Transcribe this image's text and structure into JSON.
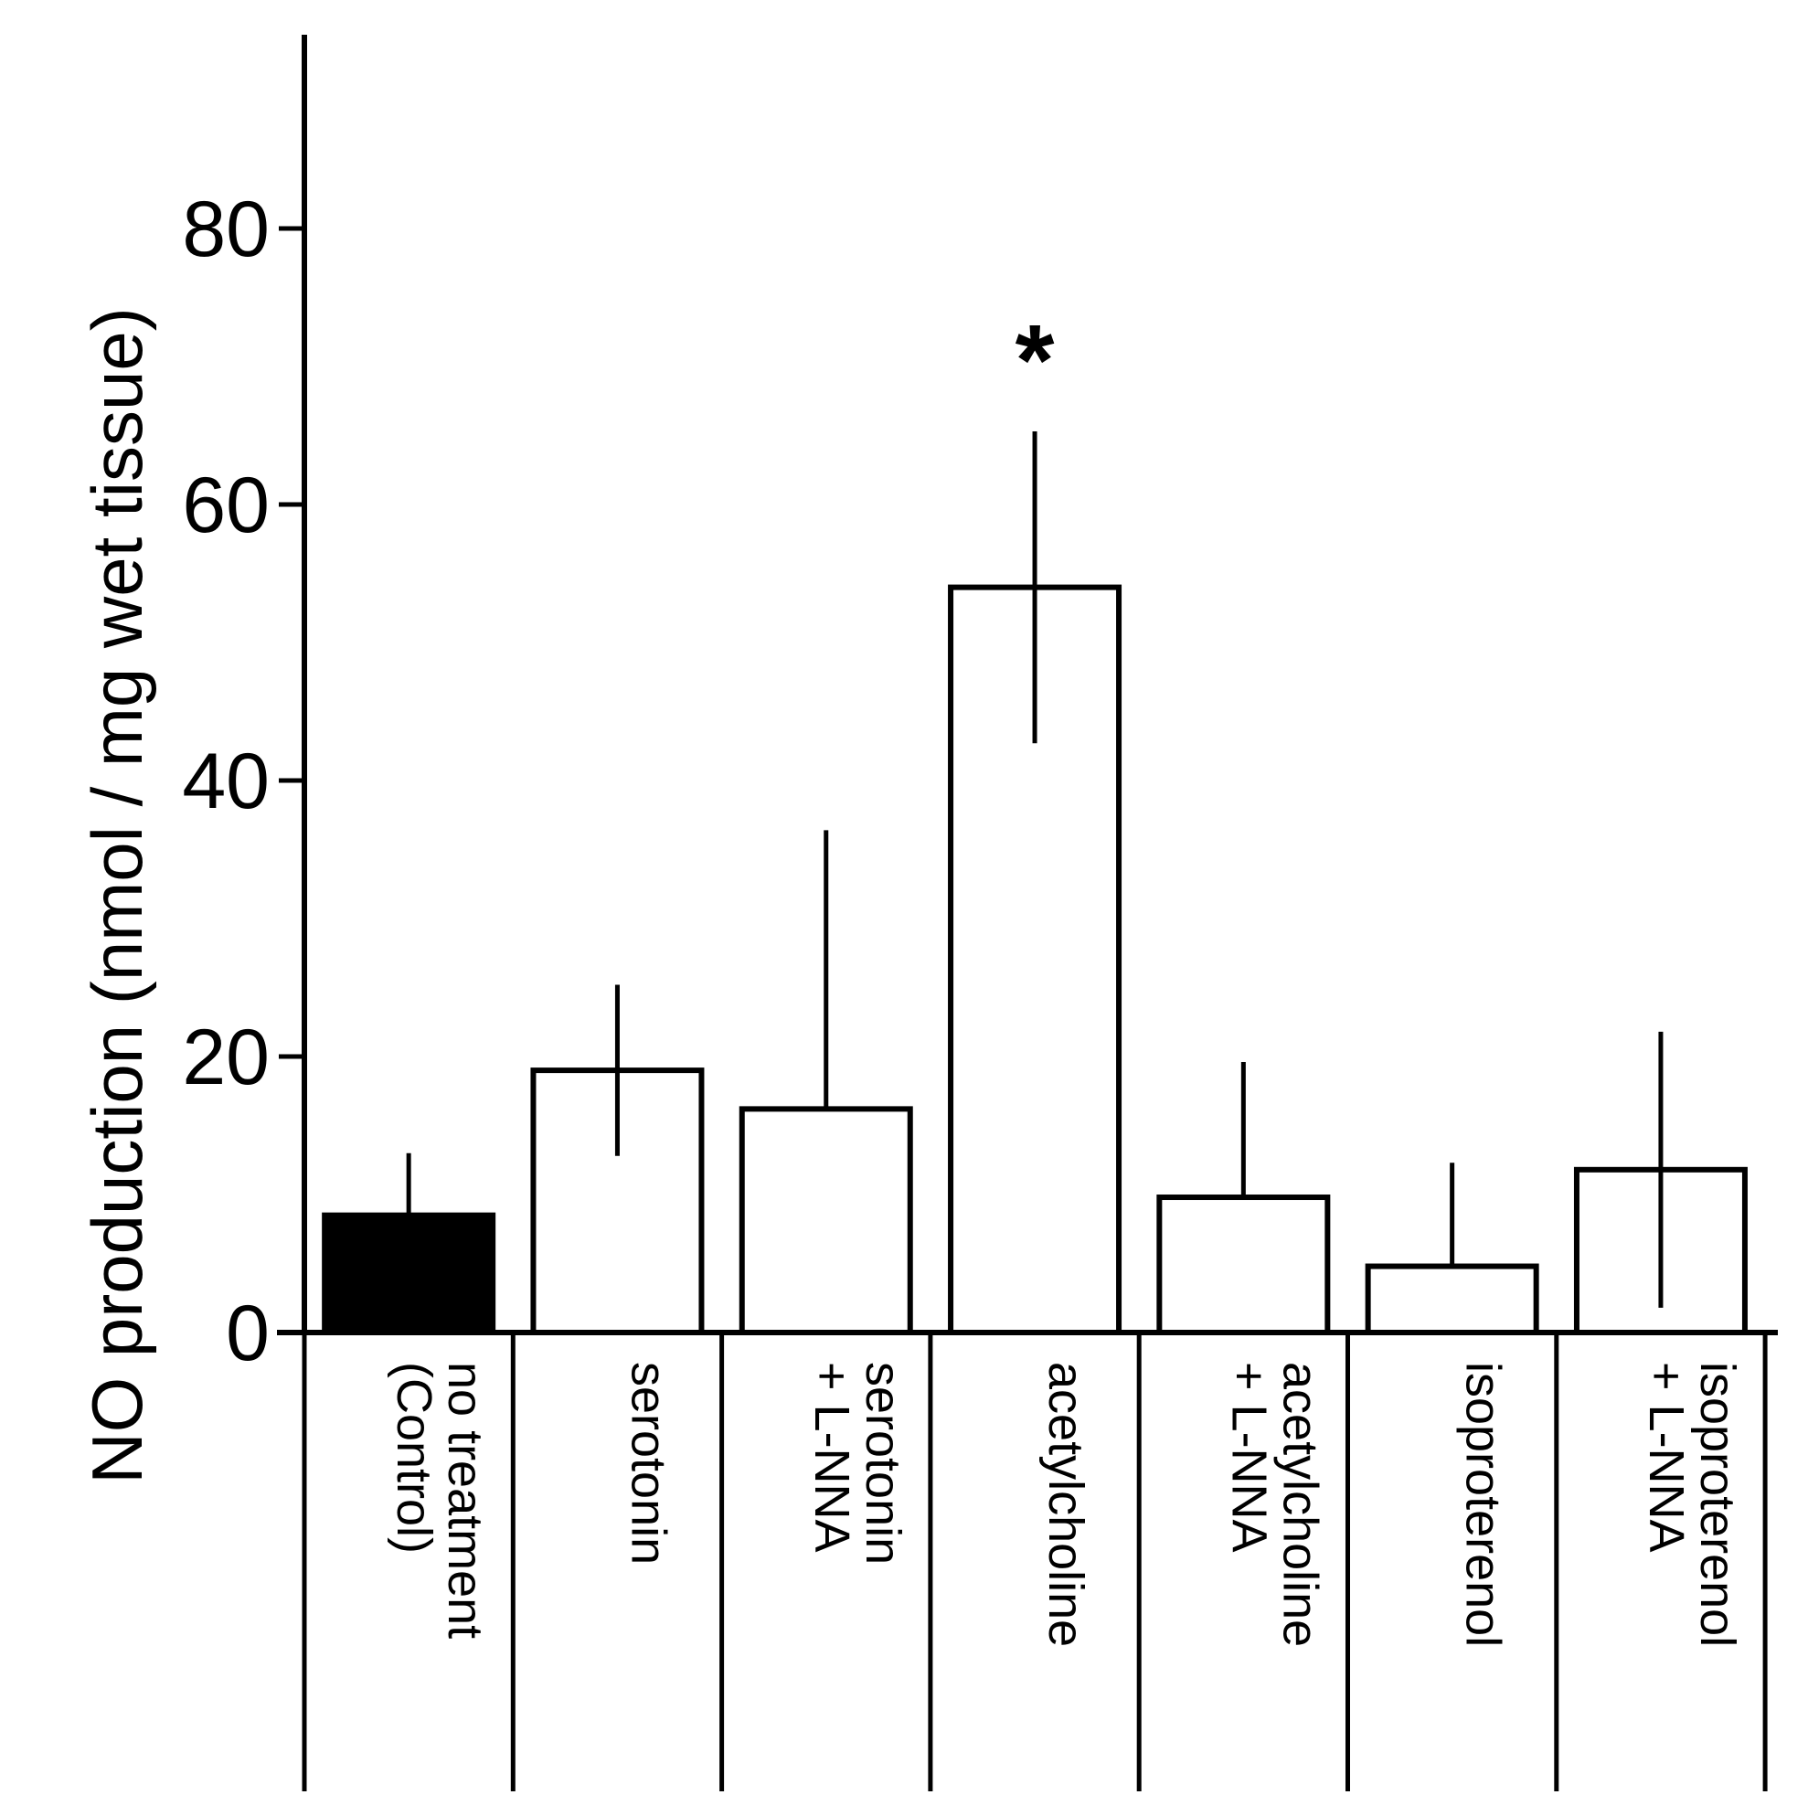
{
  "chart_data": {
    "type": "bar",
    "title": "",
    "xlabel": "",
    "ylabel": "NO production (nmol / mg wet tissue)",
    "ylim": [
      0,
      95
    ],
    "yticks": [
      0,
      20,
      40,
      60,
      80
    ],
    "grid": false,
    "legend": "none",
    "categories": [
      [
        "no treatment",
        "(Control)"
      ],
      [
        "serotonin"
      ],
      [
        "serotonin",
        "+ L-NNA"
      ],
      [
        "acetylcholine"
      ],
      [
        "acetylcholine",
        "+ L-NNA"
      ],
      [
        "isoproterenol"
      ],
      [
        "isoproterenol",
        "+ L-NNA"
      ]
    ],
    "series": [
      {
        "name": "NO production",
        "values": [
          8.5,
          19,
          16.2,
          54,
          9.8,
          4.8,
          11.8
        ],
        "errors": [
          4.5,
          6.2,
          20.2,
          11.3,
          9.8,
          7.5,
          10
        ],
        "fills": [
          "#000000",
          "#ffffff",
          "#ffffff",
          "#ffffff",
          "#ffffff",
          "#ffffff",
          "#ffffff"
        ]
      }
    ],
    "annotations": [
      {
        "category_index": 3,
        "text": "*"
      }
    ]
  }
}
